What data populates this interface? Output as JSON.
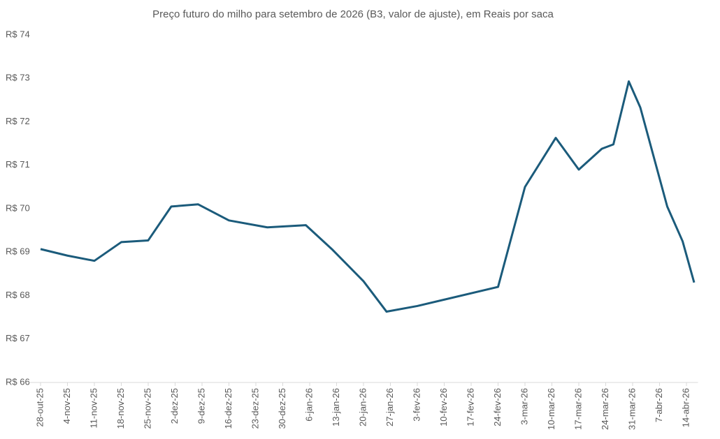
{
  "chart_data": {
    "type": "line",
    "title": "Preço futuro do milho para setembro de 2026 (B3, valor de ajuste), em Reais por saca",
    "x": [
      "2025-10-28",
      "2025-11-04",
      "2025-11-11",
      "2025-11-18",
      "2025-11-25",
      "2025-12-01",
      "2025-12-08",
      "2025-12-16",
      "2025-12-26",
      "2026-01-05",
      "2026-01-12",
      "2026-01-20",
      "2026-01-26",
      "2026-02-03",
      "2026-02-24",
      "2026-03-03",
      "2026-03-11",
      "2026-03-17",
      "2026-03-23",
      "2026-03-26",
      "2026-03-30",
      "2026-04-02",
      "2026-04-09",
      "2026-04-13",
      "2026-04-16"
    ],
    "series": [
      {
        "color": "#1b5b7b",
        "values": [
          69.07,
          68.92,
          68.8,
          69.23,
          69.27,
          70.05,
          70.1,
          69.73,
          69.57,
          69.62,
          69.05,
          68.33,
          67.63,
          67.76,
          68.2,
          70.5,
          71.63,
          70.9,
          71.38,
          71.48,
          72.93,
          72.33,
          70.05,
          69.25,
          68.3
        ]
      }
    ],
    "xlim": [
      "2025-10-25",
      "2026-04-17"
    ],
    "xticks": [
      {
        "value": "2025-10-28",
        "label": "28-out-25"
      },
      {
        "value": "2025-11-04",
        "label": "4-nov-25"
      },
      {
        "value": "2025-11-11",
        "label": "11-nov-25"
      },
      {
        "value": "2025-11-18",
        "label": "18-nov-25"
      },
      {
        "value": "2025-11-25",
        "label": "25-nov-25"
      },
      {
        "value": "2025-12-02",
        "label": "2-dez-25"
      },
      {
        "value": "2025-12-09",
        "label": "9-dez-25"
      },
      {
        "value": "2025-12-16",
        "label": "16-dez-25"
      },
      {
        "value": "2025-12-23",
        "label": "23-dez-25"
      },
      {
        "value": "2025-12-30",
        "label": "30-dez-25"
      },
      {
        "value": "2026-01-06",
        "label": "6-jan-26"
      },
      {
        "value": "2026-01-13",
        "label": "13-jan-26"
      },
      {
        "value": "2026-01-20",
        "label": "20-jan-26"
      },
      {
        "value": "2026-01-27",
        "label": "27-jan-26"
      },
      {
        "value": "2026-02-03",
        "label": "3-fev-26"
      },
      {
        "value": "2026-02-10",
        "label": "10-fev-26"
      },
      {
        "value": "2026-02-17",
        "label": "17-fev-26"
      },
      {
        "value": "2026-02-24",
        "label": "24-fev-26"
      },
      {
        "value": "2026-03-03",
        "label": "3-mar-26"
      },
      {
        "value": "2026-03-10",
        "label": "10-mar-26"
      },
      {
        "value": "2026-03-17",
        "label": "17-mar-26"
      },
      {
        "value": "2026-03-24",
        "label": "24-mar-26"
      },
      {
        "value": "2026-03-31",
        "label": "31-mar-26"
      },
      {
        "value": "2026-04-07",
        "label": "7-abr-26"
      },
      {
        "value": "2026-04-14",
        "label": "14-abr-26"
      }
    ],
    "ylim": [
      66,
      74
    ],
    "yticks": [
      {
        "value": 66,
        "label": "R$ 66"
      },
      {
        "value": 67,
        "label": "R$ 67"
      },
      {
        "value": 68,
        "label": "R$ 68"
      },
      {
        "value": 69,
        "label": "R$ 69"
      },
      {
        "value": 70,
        "label": "R$ 70"
      },
      {
        "value": 71,
        "label": "R$ 71"
      },
      {
        "value": 72,
        "label": "R$ 72"
      },
      {
        "value": 73,
        "label": "R$ 73"
      },
      {
        "value": 74,
        "label": "R$ 74"
      }
    ],
    "grid": false
  }
}
